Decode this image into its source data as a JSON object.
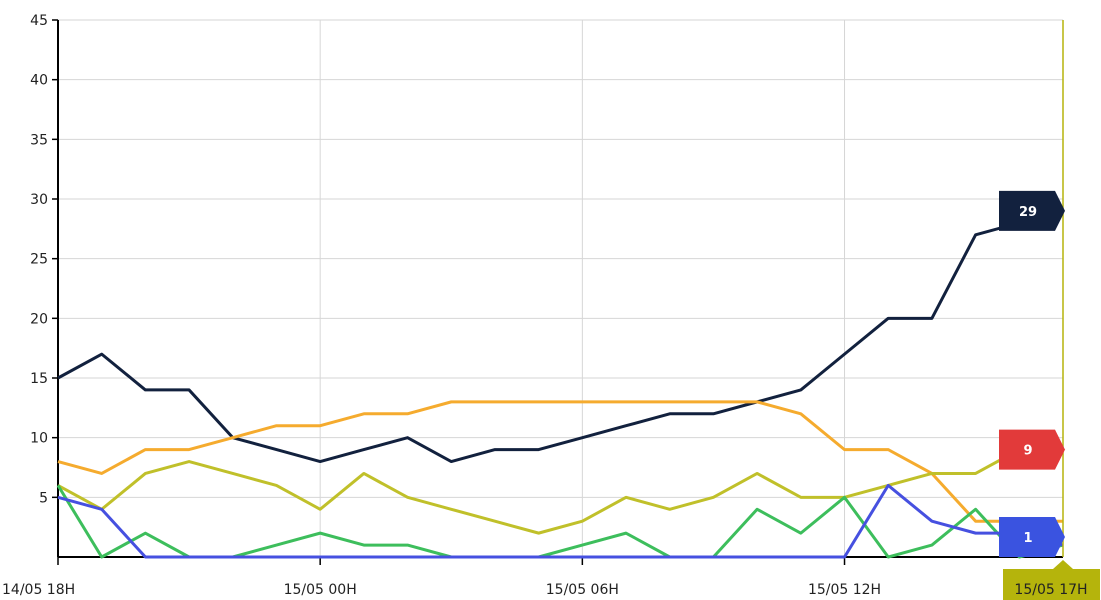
{
  "chart_data": {
    "type": "line",
    "x": [
      0,
      1,
      2,
      3,
      4,
      5,
      6,
      7,
      8,
      9,
      10,
      11,
      12,
      13,
      14,
      15,
      16,
      17,
      18,
      19,
      20,
      21,
      22,
      23
    ],
    "x_tick_labels": [
      {
        "x": 0,
        "label": "14/05 18H"
      },
      {
        "x": 6,
        "label": "15/05 00H"
      },
      {
        "x": 12,
        "label": "15/05 06H"
      },
      {
        "x": 18,
        "label": "15/05 12H"
      }
    ],
    "cursor": {
      "x": 23,
      "label": "15/05 17H",
      "color": "#b5b40c"
    },
    "y_ticks": [
      5,
      10,
      15,
      20,
      25,
      30,
      35,
      40,
      45
    ],
    "ylim": [
      0,
      45
    ],
    "xlim": [
      0,
      23
    ],
    "grid": true,
    "series": [
      {
        "color": "#12213e",
        "values": [
          15,
          17,
          14,
          14,
          10,
          9,
          8,
          9,
          10,
          8,
          9,
          9,
          10,
          11,
          12,
          12,
          13,
          14,
          17,
          20,
          20,
          27,
          28,
          29
        ]
      },
      {
        "color": "#f5ab2e",
        "values": [
          8,
          7,
          9,
          9,
          10,
          11,
          11,
          12,
          12,
          13,
          13,
          13,
          13,
          13,
          13,
          13,
          13,
          12,
          9,
          9,
          7,
          3,
          3,
          3
        ]
      },
      {
        "color": "#c0c02a",
        "values": [
          6,
          4,
          7,
          8,
          7,
          6,
          4,
          7,
          5,
          4,
          3,
          2,
          3,
          5,
          4,
          5,
          7,
          5,
          5,
          6,
          7,
          7,
          9,
          9
        ]
      },
      {
        "color": "#3dbe5c",
        "values": [
          6,
          0,
          2,
          0,
          0,
          1,
          2,
          1,
          1,
          0,
          0,
          0,
          1,
          2,
          0,
          0,
          4,
          2,
          5,
          0,
          1,
          4,
          0,
          1
        ]
      },
      {
        "color": "#4650e0",
        "values": [
          5,
          4,
          0,
          0,
          0,
          0,
          0,
          0,
          0,
          0,
          0,
          0,
          0,
          0,
          0,
          0,
          0,
          0,
          0,
          6,
          3,
          2,
          2,
          1
        ]
      }
    ],
    "flags": [
      {
        "value": 29,
        "label": "29",
        "color": "#12213e"
      },
      {
        "value": 9,
        "label": "9",
        "color": "#e23a3a"
      },
      {
        "value": 1,
        "label": "1",
        "color": "#3a53e0"
      }
    ]
  }
}
